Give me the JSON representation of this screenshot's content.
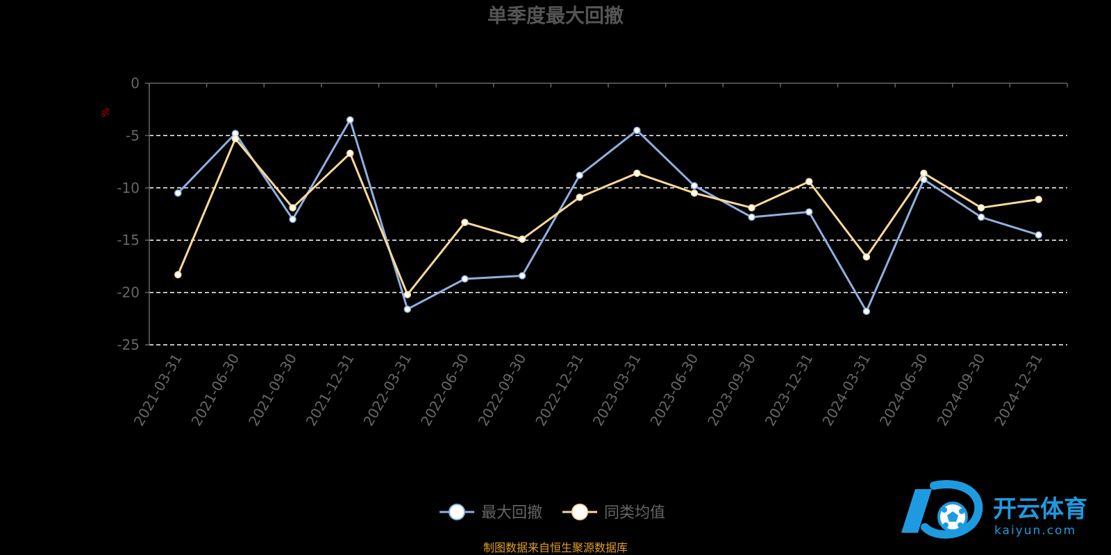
{
  "chart_data": {
    "type": "line",
    "title": "单季度最大回撤",
    "ylabel": "%",
    "xlabel": "",
    "categories": [
      "2021-03-31",
      "2021-06-30",
      "2021-09-30",
      "2021-12-31",
      "2022-03-31",
      "2022-06-30",
      "2022-09-30",
      "2022-12-31",
      "2023-03-31",
      "2023-06-30",
      "2023-09-30",
      "2023-12-31",
      "2024-03-31",
      "2024-06-30",
      "2024-09-30",
      "2024-12-31"
    ],
    "yticks": [
      "0",
      "-5",
      "-10",
      "-15",
      "-20",
      "-25"
    ],
    "ylim": [
      -25,
      0
    ],
    "grid": true,
    "legend_position": "bottom-center",
    "series": [
      {
        "name": "最大回撤",
        "color": "#8fb0e0",
        "values": [
          -10.5,
          -4.8,
          -13.0,
          -3.5,
          -21.6,
          -18.7,
          -18.4,
          -8.8,
          -4.5,
          -9.8,
          -12.8,
          -12.3,
          -21.8,
          -9.2,
          -12.8,
          -14.5
        ]
      },
      {
        "name": "同类均值",
        "color": "#ffd99a",
        "values": [
          -18.3,
          -5.3,
          -11.9,
          -6.7,
          -20.2,
          -13.3,
          -14.9,
          -10.9,
          -8.6,
          -10.5,
          -11.9,
          -9.4,
          -16.6,
          -8.6,
          -11.9,
          -11.1
        ]
      }
    ]
  },
  "footer": {
    "source": "制图数据来自恒生聚源数据库"
  },
  "watermark": {
    "brand": "开云体育",
    "url": "kaiyun.com",
    "brand_color": "#1e9be0"
  }
}
